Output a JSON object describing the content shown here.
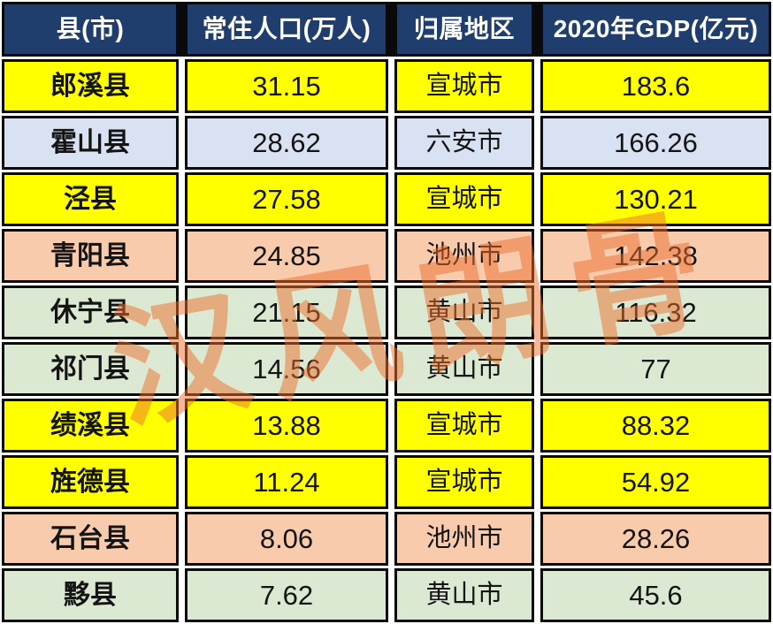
{
  "chart_data": {
    "type": "table",
    "title": "",
    "columns": [
      "县(市)",
      "常住人口(万人)",
      "归属地区",
      "2020年GDP(亿元)"
    ],
    "column_keys": [
      "county",
      "population",
      "region",
      "gdp"
    ],
    "rows": [
      {
        "county": "郎溪县",
        "population": "31.15",
        "region": "宣城市",
        "gdp": "183.6",
        "row_color": "#FFFF00"
      },
      {
        "county": "霍山县",
        "population": "28.62",
        "region": "六安市",
        "gdp": "166.26",
        "row_color": "#D9E2F3"
      },
      {
        "county": "泾县",
        "population": "27.58",
        "region": "宣城市",
        "gdp": "130.21",
        "row_color": "#FFFF00"
      },
      {
        "county": "青阳县",
        "population": "24.85",
        "region": "池州市",
        "gdp": "142.38",
        "row_color": "#F8CBAD"
      },
      {
        "county": "休宁县",
        "population": "21.15",
        "region": "黄山市",
        "gdp": "116.32",
        "row_color": "#DCE9D2"
      },
      {
        "county": "祁门县",
        "population": "14.56",
        "region": "黄山市",
        "gdp": "77",
        "row_color": "#DCE9D2"
      },
      {
        "county": "绩溪县",
        "population": "13.88",
        "region": "宣城市",
        "gdp": "88.32",
        "row_color": "#FFFF00"
      },
      {
        "county": "旌德县",
        "population": "11.24",
        "region": "宣城市",
        "gdp": "54.92",
        "row_color": "#FFFF00"
      },
      {
        "county": "石台县",
        "population": "8.06",
        "region": "池州市",
        "gdp": "28.26",
        "row_color": "#F8CBAD"
      },
      {
        "county": "黟县",
        "population": "7.62",
        "region": "黄山市",
        "gdp": "45.6",
        "row_color": "#DCE9D2"
      }
    ]
  },
  "theme": {
    "header_bg": "#1F3E6E",
    "header_text": "#FFFFFF",
    "border_color": "#0A0A0A",
    "gap_color": "#FFFFFF",
    "row_colors": {
      "yellow": "#FFFF00",
      "blue": "#D9E2F3",
      "salmon": "#F8CBAD",
      "green": "#DCE9D2"
    }
  },
  "watermark": {
    "text": "汉风朗骨",
    "color": "#ED6F2E"
  }
}
